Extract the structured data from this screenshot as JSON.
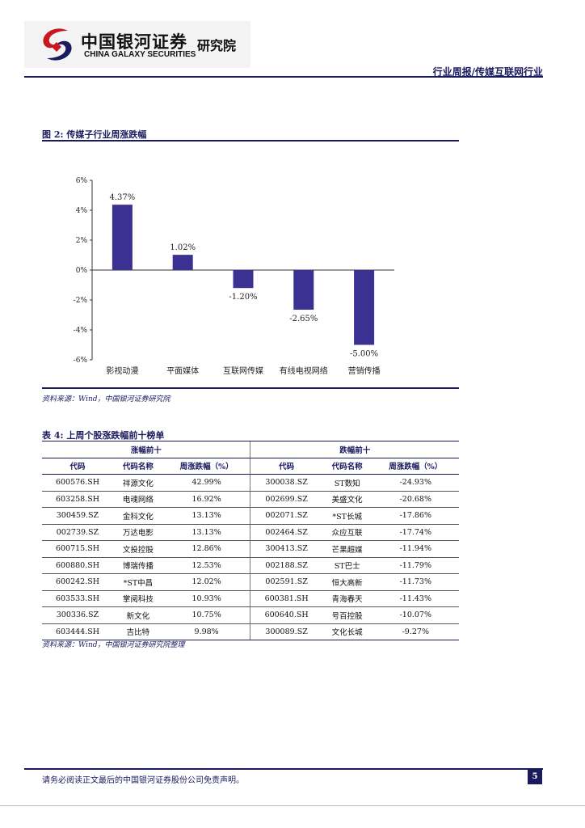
{
  "header": {
    "logo_cn": "中国银河证券",
    "logo_en": "CHINA GALAXY SECURITIES",
    "logo_inst": "研究院",
    "report_type": "行业周报/传媒互联网行业"
  },
  "figure": {
    "title": "图 2: 传媒子行业周涨跌幅",
    "source": "资料来源：Wind，中国银河证券研究院"
  },
  "chart_data": {
    "type": "bar",
    "categories": [
      "影视动漫",
      "平面媒体",
      "互联网传媒",
      "有线电视网络",
      "营销传播"
    ],
    "values": [
      4.37,
      1.02,
      -1.2,
      -2.65,
      -5.0
    ],
    "data_labels": [
      "4.37%",
      "1.02%",
      "-1.20%",
      "-2.65%",
      "-5.00%"
    ],
    "y_ticks": [
      "6%",
      "4%",
      "2%",
      "0%",
      "-2%",
      "-4%",
      "-6%"
    ],
    "ylim": [
      -6,
      6
    ],
    "bar_color": "#3b3193",
    "grid": false,
    "legend": false
  },
  "table": {
    "title": "表 4: 上周个股涨跌幅前十榜单",
    "gainers_header": "涨幅前十",
    "losers_header": "跌幅前十",
    "columns": [
      "代码",
      "代码名称",
      "周涨跌幅（%）",
      "代码",
      "代码名称",
      "周涨跌幅（%）"
    ],
    "rows": [
      [
        "600576.SH",
        "祥源文化",
        "42.99%",
        "300038.SZ",
        "ST数知",
        "-24.93%"
      ],
      [
        "603258.SH",
        "电魂网络",
        "16.92%",
        "002699.SZ",
        "美盛文化",
        "-20.68%"
      ],
      [
        "300459.SZ",
        "金科文化",
        "13.13%",
        "002071.SZ",
        "*ST长城",
        "-17.86%"
      ],
      [
        "002739.SZ",
        "万达电影",
        "13.13%",
        "002464.SZ",
        "众应互联",
        "-17.74%"
      ],
      [
        "600715.SH",
        "文投控股",
        "12.86%",
        "300413.SZ",
        "芒果超媒",
        "-11.94%"
      ],
      [
        "600880.SH",
        "博瑞传播",
        "12.53%",
        "002188.SZ",
        "ST巴士",
        "-11.79%"
      ],
      [
        "600242.SH",
        "*ST中昌",
        "12.02%",
        "002591.SZ",
        "恒大高新",
        "-11.73%"
      ],
      [
        "603533.SH",
        "掌阅科技",
        "10.93%",
        "600381.SH",
        "青海春天",
        "-11.43%"
      ],
      [
        "300336.SZ",
        "新文化",
        "10.75%",
        "600640.SH",
        "号百控股",
        "-10.07%"
      ],
      [
        "603444.SH",
        "吉比特",
        "9.98%",
        "300089.SZ",
        "文化长城",
        "-9.27%"
      ]
    ],
    "source": "资料来源：Wind，中国银河证券研究院整理"
  },
  "footer": {
    "disclaimer": "请务必阅读正文最后的中国银河证券股份公司免责声明。",
    "page_number": "5"
  }
}
